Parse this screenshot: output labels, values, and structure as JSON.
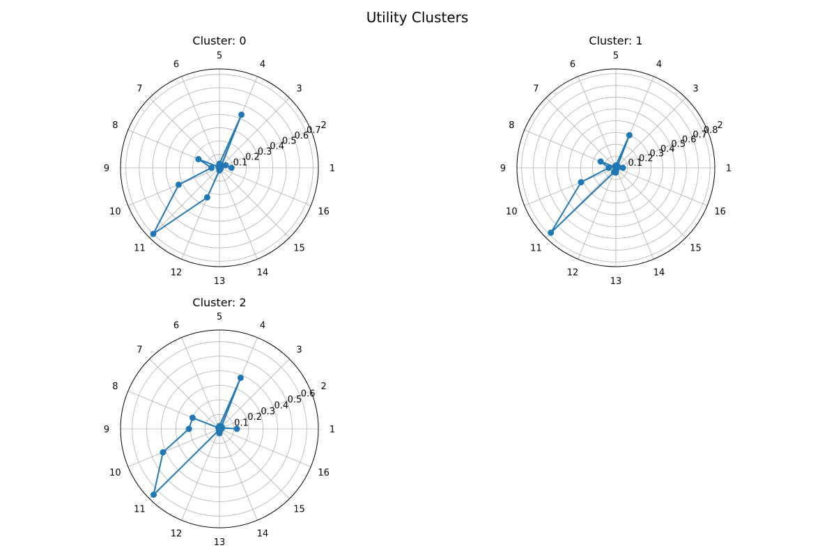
{
  "figure": {
    "title": "Utility Clusters"
  },
  "chart_data": [
    {
      "type": "polar-line",
      "title": "Cluster: 0",
      "angular_ticks": [
        "1",
        "2",
        "3",
        "4",
        "5",
        "6",
        "7",
        "8",
        "9",
        "10",
        "11",
        "12",
        "13",
        "14",
        "15",
        "16"
      ],
      "radial_ticks": [
        0.1,
        0.2,
        0.3,
        0.4,
        0.5,
        0.6,
        0.7
      ],
      "rlim": [
        0,
        0.74
      ],
      "grid": true,
      "line_color": "#1f77b4",
      "series": [
        {
          "categories": [
            "1",
            "2",
            "3",
            "4",
            "5",
            "6",
            "7",
            "8",
            "9",
            "10",
            "11",
            "12",
            "13",
            "14",
            "15",
            "16"
          ],
          "values": [
            0.09,
            0.05,
            0.02,
            0.43,
            0.03,
            0.01,
            0.01,
            0.17,
            0.06,
            0.33,
            0.7,
            0.24,
            0.02,
            0.01,
            0.01,
            0.01
          ]
        }
      ]
    },
    {
      "type": "polar-line",
      "title": "Cluster: 1",
      "angular_ticks": [
        "1",
        "2",
        "3",
        "4",
        "5",
        "6",
        "7",
        "8",
        "9",
        "10",
        "11",
        "12",
        "13",
        "14",
        "15",
        "16"
      ],
      "radial_ticks": [
        0.1,
        0.2,
        0.3,
        0.4,
        0.5,
        0.6,
        0.7,
        0.8
      ],
      "rlim": [
        0,
        0.84
      ],
      "grid": true,
      "line_color": "#1f77b4",
      "series": [
        {
          "categories": [
            "1",
            "2",
            "3",
            "4",
            "5",
            "6",
            "7",
            "8",
            "9",
            "10",
            "11",
            "12",
            "13",
            "14",
            "15",
            "16"
          ],
          "values": [
            0.06,
            0.02,
            0.02,
            0.3,
            0.02,
            0.01,
            0.01,
            0.14,
            0.06,
            0.32,
            0.78,
            0.04,
            0.04,
            0.01,
            0.01,
            0.01
          ]
        }
      ]
    },
    {
      "type": "polar-line",
      "title": "Cluster: 2",
      "angular_ticks": [
        "1",
        "2",
        "3",
        "4",
        "5",
        "6",
        "7",
        "8",
        "9",
        "10",
        "11",
        "12",
        "13",
        "14",
        "15",
        "16"
      ],
      "radial_ticks": [
        0.1,
        0.2,
        0.3,
        0.4,
        0.5,
        0.6
      ],
      "rlim": [
        0,
        0.68
      ],
      "grid": true,
      "line_color": "#1f77b4",
      "series": [
        {
          "categories": [
            "1",
            "2",
            "3",
            "4",
            "5",
            "6",
            "7",
            "8",
            "9",
            "10",
            "11",
            "12",
            "13",
            "14",
            "15",
            "16"
          ],
          "values": [
            0.12,
            0.02,
            0.02,
            0.38,
            0.02,
            0.01,
            0.01,
            0.2,
            0.21,
            0.42,
            0.64,
            0.01,
            0.03,
            0.01,
            0.01,
            0.01
          ]
        }
      ]
    }
  ]
}
